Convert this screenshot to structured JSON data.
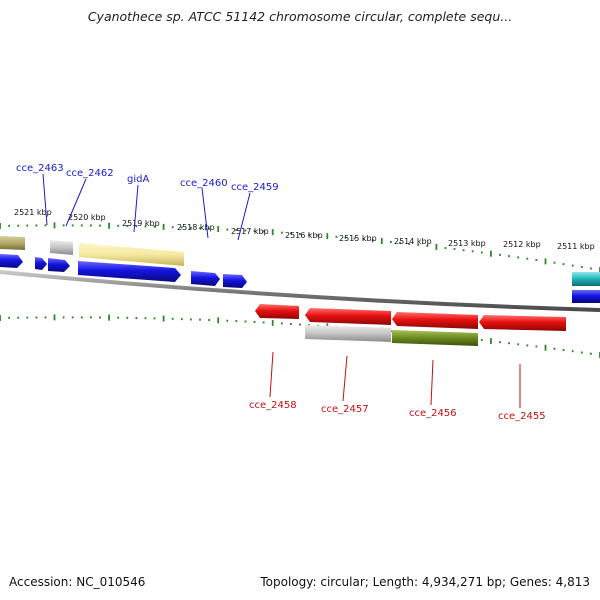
{
  "title": "Cyanothece sp. ATCC 51142 chromosome circular, complete sequ...",
  "footer": {
    "accession": "Accession: NC_010546",
    "topology": "Topology: circular; Length: 4,934,271 bp; Genes: 4,813"
  },
  "colors": {
    "forward_gene": "#1414e0",
    "reverse_gene": "#e81010",
    "rna_gene": "#d4c46a",
    "pseudo_gene": "#b8b8b8",
    "other_gene": "#6b8a1e",
    "cyan_gene": "#20b2b8",
    "tick": "#2a8a2a",
    "backbone": "#8a8a8a",
    "forward_label": "#1a1ad0",
    "reverse_label": "#c41010"
  },
  "ruler_labels": [
    "2521 kbp",
    "2520 kbp",
    "2519 kbp",
    "2518 kbp",
    "2517 kbp",
    "2516 kbp",
    "2515 kbp",
    "2514 kbp",
    "2513 kbp",
    "2512 kbp",
    "2511 kbp"
  ],
  "forward_gene_labels": [
    "cce_2463",
    "cce_2462",
    "gidA",
    "cce_2460",
    "cce_2459"
  ],
  "reverse_gene_labels": [
    "cce_2458",
    "cce_2457",
    "cce_2456",
    "cce_2455"
  ]
}
